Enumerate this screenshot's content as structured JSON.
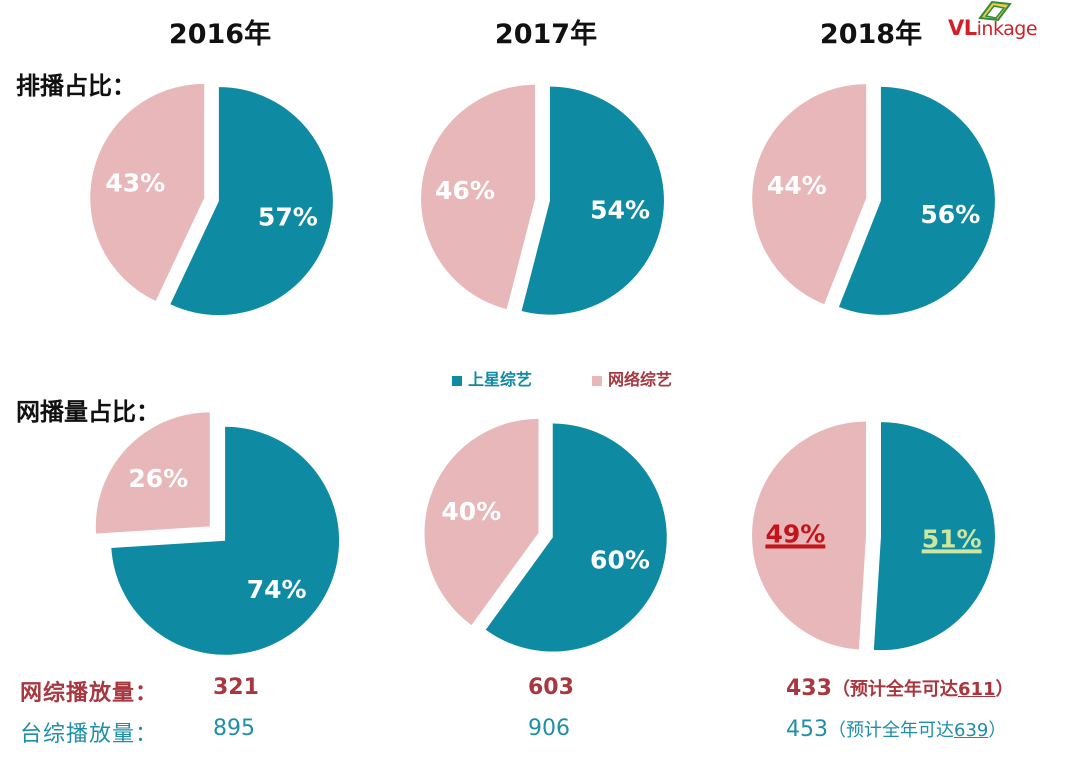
{
  "header": {
    "years": [
      "2016年",
      "2017年",
      "2018年"
    ],
    "logo": "VLinkage"
  },
  "rows": {
    "broadcast_label": "排播占比：",
    "views_label": "网播量占比："
  },
  "legend": {
    "satellite": "上星综艺",
    "online": "网络综艺"
  },
  "colors": {
    "satellite": "#0e8aa3",
    "online": "#e8b7b9",
    "label_white": "#ffffff",
    "highlight_red": "#c3141c",
    "highlight_green": "#cde7a0",
    "online_text": "#a8373f",
    "satellite_text": "#1f8fa8"
  },
  "chart_data": [
    {
      "type": "pie",
      "row": "排播占比：",
      "year": "2016年",
      "slices": [
        {
          "name": "网络综艺",
          "value": 43,
          "label": "43%"
        },
        {
          "name": "上星综艺",
          "value": 57,
          "label": "57%"
        }
      ]
    },
    {
      "type": "pie",
      "row": "排播占比：",
      "year": "2017年",
      "slices": [
        {
          "name": "网络综艺",
          "value": 46,
          "label": "46%"
        },
        {
          "name": "上星综艺",
          "value": 54,
          "label": "54%"
        }
      ]
    },
    {
      "type": "pie",
      "row": "排播占比：",
      "year": "2018年",
      "slices": [
        {
          "name": "网络综艺",
          "value": 44,
          "label": "44%"
        },
        {
          "name": "上星综艺",
          "value": 56,
          "label": "56%"
        }
      ]
    },
    {
      "type": "pie",
      "row": "网播量占比：",
      "year": "2016年",
      "slices": [
        {
          "name": "网络综艺",
          "value": 26,
          "label": "26%"
        },
        {
          "name": "上星综艺",
          "value": 74,
          "label": "74%"
        }
      ]
    },
    {
      "type": "pie",
      "row": "网播量占比：",
      "year": "2017年",
      "slices": [
        {
          "name": "网络综艺",
          "value": 40,
          "label": "40%"
        },
        {
          "name": "上星综艺",
          "value": 60,
          "label": "60%"
        }
      ]
    },
    {
      "type": "pie",
      "row": "网播量占比：",
      "year": "2018年",
      "slices": [
        {
          "name": "网络综艺",
          "value": 49,
          "label": "49%"
        },
        {
          "name": "上星综艺",
          "value": 51,
          "label": "51%"
        }
      ]
    }
  ],
  "footer": {
    "online_label": "网综播放量：",
    "online_values": [
      "321",
      "603",
      "433"
    ],
    "online_note_prefix": "（预计全年可达",
    "online_note_value": "611",
    "online_note_suffix": "）",
    "tv_label": "台综播放量：",
    "tv_values": [
      "895",
      "906",
      "453"
    ],
    "tv_note_prefix": "（预计全年可达",
    "tv_note_value": "639",
    "tv_note_suffix": "）"
  }
}
